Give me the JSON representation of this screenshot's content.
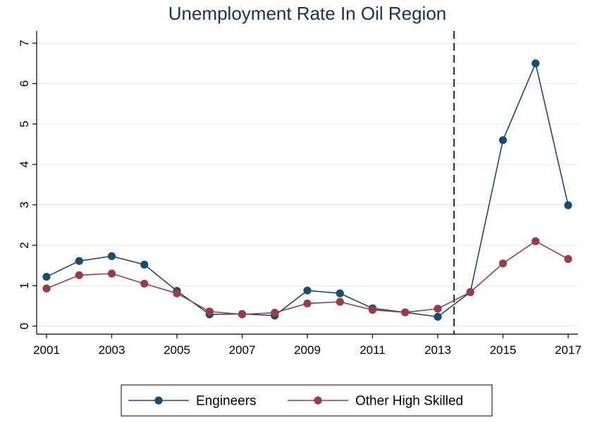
{
  "chart_data": {
    "type": "line",
    "title": "Unemployment Rate In Oil Region",
    "xlabel": "",
    "ylabel": "",
    "x": [
      2001,
      2002,
      2003,
      2004,
      2005,
      2006,
      2007,
      2008,
      2009,
      2010,
      2011,
      2012,
      2013,
      2014,
      2015,
      2016,
      2017
    ],
    "x_ticks": [
      2001,
      2003,
      2005,
      2007,
      2009,
      2011,
      2013,
      2015,
      2017
    ],
    "xlim": [
      2001,
      2017
    ],
    "y_ticks": [
      0,
      1,
      2,
      3,
      4,
      5,
      6,
      7
    ],
    "ylim": [
      -0.2,
      7.3
    ],
    "vline_x": 2013.5,
    "grid": true,
    "legend_position": "bottom",
    "series": [
      {
        "name": "Engineers",
        "color": "#1a4b73",
        "values": [
          1.22,
          1.61,
          1.73,
          1.52,
          0.87,
          0.29,
          0.3,
          0.26,
          0.88,
          0.81,
          0.44,
          0.34,
          0.23,
          0.84,
          4.6,
          6.5,
          2.99
        ]
      },
      {
        "name": "Other High Skilled",
        "color": "#9a3b46",
        "values": [
          0.93,
          1.26,
          1.3,
          1.05,
          0.81,
          0.36,
          0.29,
          0.33,
          0.56,
          0.6,
          0.4,
          0.34,
          0.43,
          0.84,
          1.55,
          2.1,
          1.66
        ]
      }
    ]
  }
}
